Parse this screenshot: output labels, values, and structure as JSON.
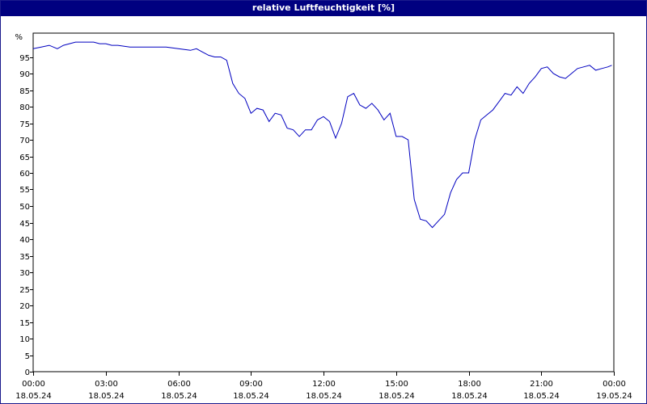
{
  "chart_data": {
    "type": "line",
    "title": "relative Luftfeuchtigkeit [%]",
    "yunit_label": "%",
    "ylim": [
      0,
      100
    ],
    "yticks": [
      0,
      5,
      10,
      15,
      20,
      25,
      30,
      35,
      40,
      45,
      50,
      55,
      60,
      65,
      70,
      75,
      80,
      85,
      90,
      95
    ],
    "xlim": [
      "18.05.24 00:00",
      "19.05.24 00:00"
    ],
    "xticks": [
      {
        "time": "00:00",
        "date": "18.05.24"
      },
      {
        "time": "03:00",
        "date": "18.05.24"
      },
      {
        "time": "06:00",
        "date": "18.05.24"
      },
      {
        "time": "09:00",
        "date": "18.05.24"
      },
      {
        "time": "12:00",
        "date": "18.05.24"
      },
      {
        "time": "15:00",
        "date": "18.05.24"
      },
      {
        "time": "18:00",
        "date": "18.05.24"
      },
      {
        "time": "21:00",
        "date": "18.05.24"
      },
      {
        "time": "00:00",
        "date": "19.05.24"
      }
    ],
    "grid": true,
    "line_color": "#0000c0",
    "series": [
      {
        "x": [
          "18.05.24 00:00",
          "18.05.24 00:20",
          "18.05.24 00:40",
          "18.05.24 01:00",
          "18.05.24 01:15",
          "18.05.24 01:30",
          "18.05.24 01:45",
          "18.05.24 02:00",
          "18.05.24 02:15",
          "18.05.24 02:30",
          "18.05.24 02:45",
          "18.05.24 03:00",
          "18.05.24 03:15",
          "18.05.24 03:30",
          "18.05.24 04:00",
          "18.05.24 04:30",
          "18.05.24 05:00",
          "18.05.24 05:30",
          "18.05.24 06:00",
          "18.05.24 06:30",
          "18.05.24 06:45",
          "18.05.24 07:00",
          "18.05.24 07:15",
          "18.05.24 07:30",
          "18.05.24 07:45",
          "18.05.24 08:00",
          "18.05.24 08:15",
          "18.05.24 08:30",
          "18.05.24 08:45",
          "18.05.24 09:00",
          "18.05.24 09:15",
          "18.05.24 09:30",
          "18.05.24 09:45",
          "18.05.24 10:00",
          "18.05.24 10:15",
          "18.05.24 10:30",
          "18.05.24 10:45",
          "18.05.24 11:00",
          "18.05.24 11:15",
          "18.05.24 11:30",
          "18.05.24 11:45",
          "18.05.24 12:00",
          "18.05.24 12:15",
          "18.05.24 12:30",
          "18.05.24 12:45",
          "18.05.24 13:00",
          "18.05.24 13:15",
          "18.05.24 13:30",
          "18.05.24 13:45",
          "18.05.24 14:00",
          "18.05.24 14:15",
          "18.05.24 14:30",
          "18.05.24 14:45",
          "18.05.24 15:00",
          "18.05.24 15:15",
          "18.05.24 15:30",
          "18.05.24 15:45",
          "18.05.24 16:00",
          "18.05.24 16:15",
          "18.05.24 16:30",
          "18.05.24 16:45",
          "18.05.24 17:00",
          "18.05.24 17:15",
          "18.05.24 17:30",
          "18.05.24 17:45",
          "18.05.24 18:00",
          "18.05.24 18:15",
          "18.05.24 18:30",
          "18.05.24 18:45",
          "18.05.24 19:00",
          "18.05.24 19:15",
          "18.05.24 19:30",
          "18.05.24 19:45",
          "18.05.24 20:00",
          "18.05.24 20:15",
          "18.05.24 20:30",
          "18.05.24 20:45",
          "18.05.24 21:00",
          "18.05.24 21:15",
          "18.05.24 21:30",
          "18.05.24 21:45",
          "18.05.24 22:00",
          "18.05.24 22:15",
          "18.05.24 22:30",
          "18.05.24 22:45",
          "18.05.24 23:00",
          "18.05.24 23:15",
          "18.05.24 23:30",
          "18.05.24 23:45",
          "18.05.24 23:55"
        ],
        "y": [
          97.5,
          98.0,
          98.5,
          97.5,
          98.5,
          99.0,
          99.5,
          99.5,
          99.5,
          99.5,
          99.0,
          99.0,
          98.5,
          98.5,
          98.0,
          98.0,
          98.0,
          98.0,
          97.5,
          97.0,
          97.5,
          96.5,
          95.5,
          95.0,
          95.0,
          94.0,
          87.0,
          84.0,
          82.5,
          78.0,
          79.5,
          79.0,
          75.5,
          78.0,
          77.5,
          73.5,
          73.0,
          71.0,
          73.0,
          73.0,
          76.0,
          77.0,
          75.5,
          70.5,
          75.0,
          83.0,
          84.0,
          80.5,
          79.5,
          81.0,
          79.0,
          76.0,
          78.0,
          71.0,
          71.0,
          70.0,
          52.0,
          46.0,
          45.5,
          43.5,
          45.5,
          47.5,
          54.0,
          58.0,
          60.0,
          60.0,
          70.0,
          76.0,
          77.5,
          79.0,
          81.5,
          84.0,
          83.5,
          86.0,
          84.0,
          87.0,
          89.0,
          91.5,
          92.0,
          90.0,
          89.0,
          88.5,
          90.0,
          91.5,
          92.0,
          92.5,
          91.0,
          91.5,
          92.0,
          92.5
        ]
      }
    ]
  }
}
